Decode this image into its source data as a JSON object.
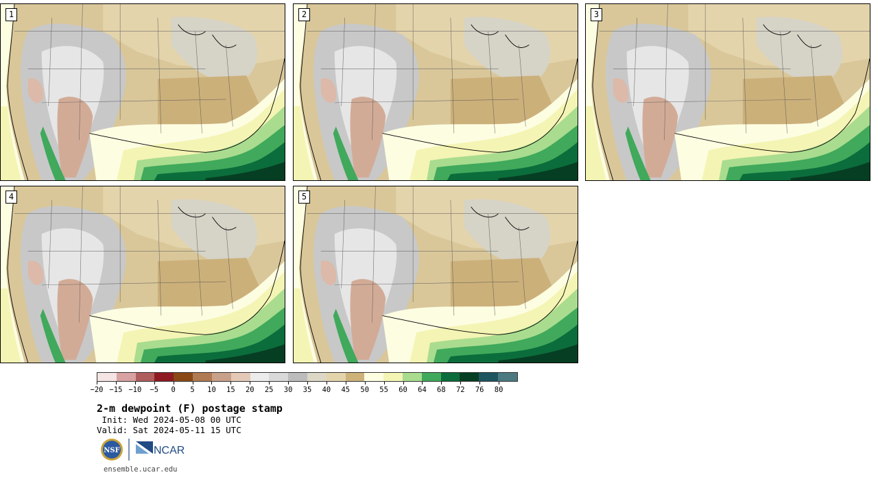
{
  "panels": [
    {
      "label": "1"
    },
    {
      "label": "2"
    },
    {
      "label": "3"
    },
    {
      "label": "4"
    },
    {
      "label": "5"
    }
  ],
  "colorbar": {
    "tick_labels": [
      "−20",
      "−15",
      "−10",
      "−5",
      "0",
      "5",
      "10",
      "15",
      "20",
      "25",
      "30",
      "35",
      "40",
      "45",
      "50",
      "55",
      "60",
      "64",
      "68",
      "72",
      "76",
      "80"
    ],
    "colors": [
      "#f4e4e4",
      "#d8a2a2",
      "#b05d5d",
      "#8f1a22",
      "#8a4914",
      "#b07a52",
      "#c9a089",
      "#e4c9b8",
      "#ececec",
      "#d9d9d9",
      "#bcbcbc",
      "#ddd8c6",
      "#e4d4ac",
      "#cdb27a",
      "#fdfde2",
      "#f4f4b4",
      "#a9dc8f",
      "#40a95b",
      "#0b6d3b",
      "#063e23",
      "#1d5560",
      "#4b7b80"
    ]
  },
  "title": "2-m dewpoint (F) postage stamp",
  "init": " Init: Wed 2024-05-08 00 UTC",
  "valid": "Valid: Sat 2024-05-11 15 UTC",
  "logos": {
    "nsf": "NSF",
    "ncar": "NCAR"
  },
  "site": "ensemble.ucar.edu"
}
